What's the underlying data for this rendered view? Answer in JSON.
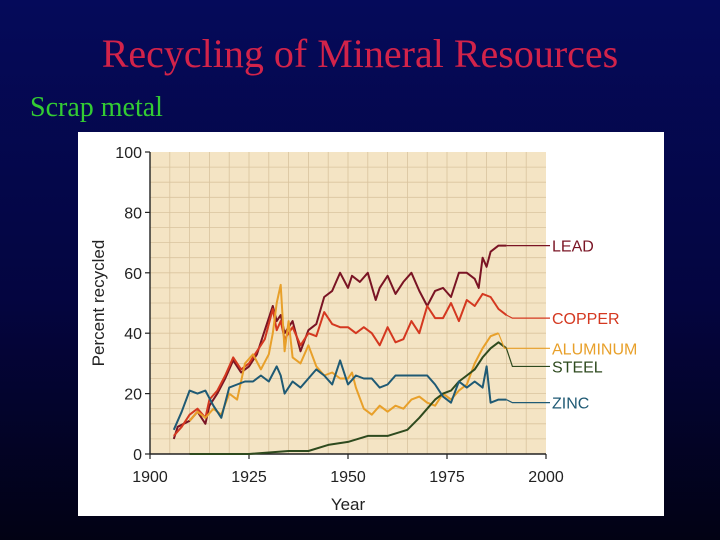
{
  "slide": {
    "title": "Recycling of Mineral Resources",
    "subtitle": "Scrap metal"
  },
  "colors": {
    "background": "#040540",
    "title": "#d2234a",
    "subtitle": "#33cc33",
    "plot_background": "#f4e4c4",
    "grid": "#d9c39e"
  },
  "chart_data": {
    "type": "line",
    "title": "",
    "xlabel": "Year",
    "ylabel": "Percent recycled",
    "xlim": [
      1900,
      2000
    ],
    "ylim": [
      0,
      100
    ],
    "xticks": [
      1900,
      1925,
      1950,
      1975,
      2000
    ],
    "yticks": [
      0,
      20,
      40,
      60,
      80,
      100
    ],
    "grid": true,
    "legend": "right-end labels",
    "series": [
      {
        "name": "LEAD",
        "color": "#7a1424",
        "x": [
          1906,
          1907,
          1910,
          1912,
          1914,
          1915,
          1917,
          1919,
          1921,
          1923,
          1925,
          1927,
          1929,
          1931,
          1932,
          1933,
          1934,
          1936,
          1938,
          1940,
          1942,
          1944,
          1946,
          1947,
          1948,
          1950,
          1951,
          1953,
          1955,
          1957,
          1958,
          1960,
          1962,
          1964,
          1966,
          1968,
          1970,
          1972,
          1974,
          1976,
          1978,
          1980,
          1982,
          1983,
          1984,
          1985,
          1986,
          1988,
          1990
        ],
        "y": [
          5,
          9,
          11,
          14,
          10,
          16,
          20,
          25,
          31,
          27,
          29,
          33,
          41,
          49,
          44,
          46,
          40,
          44,
          34,
          41,
          43,
          52,
          54,
          57,
          60,
          55,
          59,
          57,
          60,
          51,
          55,
          59,
          53,
          57,
          60,
          54,
          49,
          54,
          55,
          52,
          60,
          60,
          58,
          55,
          65,
          62,
          67,
          69,
          69
        ]
      },
      {
        "name": "COPPER",
        "color": "#d43820",
        "x": [
          1906,
          1908,
          1910,
          1912,
          1914,
          1915,
          1917,
          1919,
          1921,
          1923,
          1925,
          1927,
          1929,
          1931,
          1932,
          1933,
          1934,
          1936,
          1938,
          1940,
          1942,
          1944,
          1946,
          1948,
          1950,
          1952,
          1954,
          1956,
          1958,
          1960,
          1962,
          1964,
          1966,
          1968,
          1970,
          1972,
          1974,
          1976,
          1978,
          1980,
          1982,
          1984,
          1986,
          1988,
          1990
        ],
        "y": [
          6,
          9,
          13,
          15,
          12,
          18,
          21,
          26,
          32,
          28,
          30,
          34,
          38,
          48,
          41,
          44,
          38,
          42,
          36,
          40,
          39,
          47,
          43,
          42,
          42,
          40,
          42,
          40,
          36,
          42,
          37,
          38,
          44,
          40,
          49,
          45,
          45,
          50,
          44,
          51,
          49,
          53,
          52,
          48,
          46
        ]
      },
      {
        "name": "ALUMINUM",
        "color": "#e8a02a",
        "x": [
          1910,
          1912,
          1914,
          1916,
          1918,
          1920,
          1922,
          1924,
          1926,
          1928,
          1930,
          1931,
          1932,
          1933,
          1934,
          1935,
          1936,
          1938,
          1940,
          1942,
          1944,
          1946,
          1948,
          1950,
          1951,
          1952,
          1954,
          1956,
          1958,
          1960,
          1962,
          1964,
          1966,
          1968,
          1970,
          1972,
          1974,
          1976,
          1978,
          1980,
          1982,
          1984,
          1986,
          1988
        ],
        "y": [
          11,
          14,
          12,
          15,
          13,
          20,
          18,
          30,
          33,
          28,
          33,
          40,
          50,
          56,
          34,
          44,
          32,
          30,
          36,
          29,
          26,
          27,
          25,
          25,
          27,
          22,
          15,
          13,
          16,
          14,
          16,
          15,
          18,
          19,
          17,
          16,
          20,
          18,
          21,
          23,
          30,
          35,
          39,
          40
        ]
      },
      {
        "name": "STEEL",
        "color": "#2e4a1e",
        "x": [
          1910,
          1925,
          1935,
          1940,
          1945,
          1950,
          1955,
          1960,
          1965,
          1968,
          1970,
          1972,
          1974,
          1976,
          1978,
          1980,
          1982,
          1984,
          1986,
          1988,
          1990
        ],
        "y": [
          0,
          0,
          1,
          1,
          3,
          4,
          6,
          6,
          8,
          12,
          15,
          18,
          20,
          21,
          24,
          26,
          28,
          32,
          35,
          37,
          35
        ]
      },
      {
        "name": "ZINC",
        "color": "#1f5a74",
        "x": [
          1906,
          1908,
          1910,
          1912,
          1914,
          1916,
          1918,
          1920,
          1922,
          1924,
          1926,
          1928,
          1930,
          1932,
          1933,
          1934,
          1936,
          1938,
          1940,
          1942,
          1944,
          1946,
          1948,
          1950,
          1952,
          1954,
          1956,
          1958,
          1960,
          1962,
          1964,
          1966,
          1968,
          1970,
          1972,
          1974,
          1976,
          1978,
          1980,
          1982,
          1984,
          1985,
          1986,
          1988,
          1990
        ],
        "y": [
          8,
          14,
          21,
          20,
          21,
          16,
          12,
          22,
          23,
          24,
          24,
          26,
          24,
          29,
          26,
          20,
          24,
          22,
          25,
          28,
          26,
          23,
          31,
          23,
          26,
          25,
          25,
          22,
          23,
          26,
          26,
          26,
          26,
          26,
          23,
          19,
          17,
          24,
          22,
          24,
          22,
          29,
          17,
          18,
          18
        ]
      }
    ]
  }
}
